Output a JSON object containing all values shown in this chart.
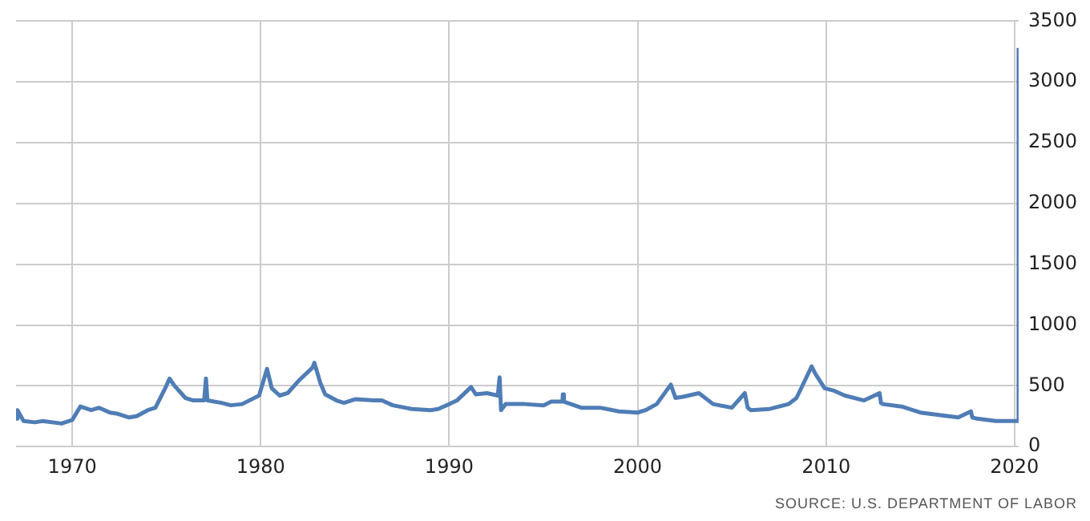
{
  "chart_data": {
    "type": "line",
    "x": [
      "1967-01-07",
      "1967-02-04",
      "1967-06-03",
      "1968-01-06",
      "1968-06-01",
      "1969-06-07",
      "1970-01-03",
      "1970-06-06",
      "1971-01-02",
      "1971-06-05",
      "1972-01-01",
      "1972-06-03",
      "1973-01-06",
      "1973-06-02",
      "1974-01-05",
      "1974-06-01",
      "1974-12-07",
      "1975-03-01",
      "1975-06-07",
      "1976-01-03",
      "1976-06-05",
      "1977-01-01",
      "1977-02-05",
      "1977-03-05",
      "1977-12-03",
      "1978-06-03",
      "1979-01-06",
      "1979-12-01",
      "1980-05-03",
      "1980-08-02",
      "1981-01-03",
      "1981-06-06",
      "1982-01-02",
      "1982-10-02",
      "1982-11-06",
      "1983-03-05",
      "1983-06-04",
      "1984-01-07",
      "1984-06-02",
      "1985-01-05",
      "1986-01-04",
      "1986-06-07",
      "1987-01-03",
      "1988-01-02",
      "1989-01-07",
      "1989-06-03",
      "1990-01-06",
      "1990-06-02",
      "1991-03-02",
      "1991-06-01",
      "1992-01-04",
      "1992-08-01",
      "1992-09-05",
      "1992-10-03",
      "1993-01-02",
      "1994-01-01",
      "1995-01-07",
      "1995-06-03",
      "1996-01-06",
      "1996-01-13",
      "1996-02-03",
      "1997-01-04",
      "1998-01-03",
      "1999-01-02",
      "2000-01-01",
      "2000-06-03",
      "2001-01-06",
      "2001-10-06",
      "2002-01-05",
      "2002-06-01",
      "2003-04-05",
      "2004-01-03",
      "2005-01-01",
      "2005-09-10",
      "2005-11-05",
      "2006-01-07",
      "2007-01-06",
      "2008-01-05",
      "2008-06-07",
      "2008-12-06",
      "2009-03-28",
      "2009-06-06",
      "2009-12-05",
      "2010-06-05",
      "2011-01-01",
      "2012-01-07",
      "2012-11-03",
      "2012-12-01",
      "2013-01-05",
      "2014-01-04",
      "2015-01-03",
      "2016-01-02",
      "2017-01-07",
      "2017-09-09",
      "2017-10-07",
      "2018-01-06",
      "2019-01-05",
      "2020-03-14",
      "2020-03-21"
    ],
    "values": [
      230,
      300,
      210,
      200,
      210,
      190,
      220,
      330,
      300,
      320,
      280,
      270,
      240,
      250,
      300,
      320,
      480,
      560,
      500,
      400,
      380,
      380,
      560,
      380,
      360,
      340,
      350,
      420,
      640,
      480,
      420,
      440,
      540,
      650,
      690,
      520,
      430,
      380,
      360,
      390,
      380,
      380,
      340,
      310,
      300,
      310,
      350,
      380,
      490,
      430,
      440,
      420,
      570,
      300,
      350,
      350,
      340,
      370,
      370,
      430,
      370,
      320,
      320,
      290,
      280,
      300,
      350,
      510,
      400,
      410,
      440,
      350,
      320,
      440,
      320,
      300,
      310,
      350,
      400,
      560,
      660,
      600,
      480,
      460,
      420,
      380,
      440,
      360,
      350,
      330,
      280,
      260,
      240,
      290,
      240,
      230,
      210,
      210,
      3280
    ],
    "color": "#4f7db6",
    "xlim": [
      "1967-01-07",
      "2020-03-21"
    ],
    "xticks": [
      "1970",
      "1980",
      "1990",
      "2000",
      "2010",
      "2020"
    ],
    "ylim": [
      0,
      3500
    ],
    "yticks": [
      0,
      500,
      1000,
      1500,
      2000,
      2500,
      3000,
      3500
    ],
    "grid": true,
    "legend": false,
    "marker": "none",
    "line_style": "solid",
    "annotations": [
      "SOURCE: U.S. DEPARTMENT OF LABOR"
    ]
  }
}
